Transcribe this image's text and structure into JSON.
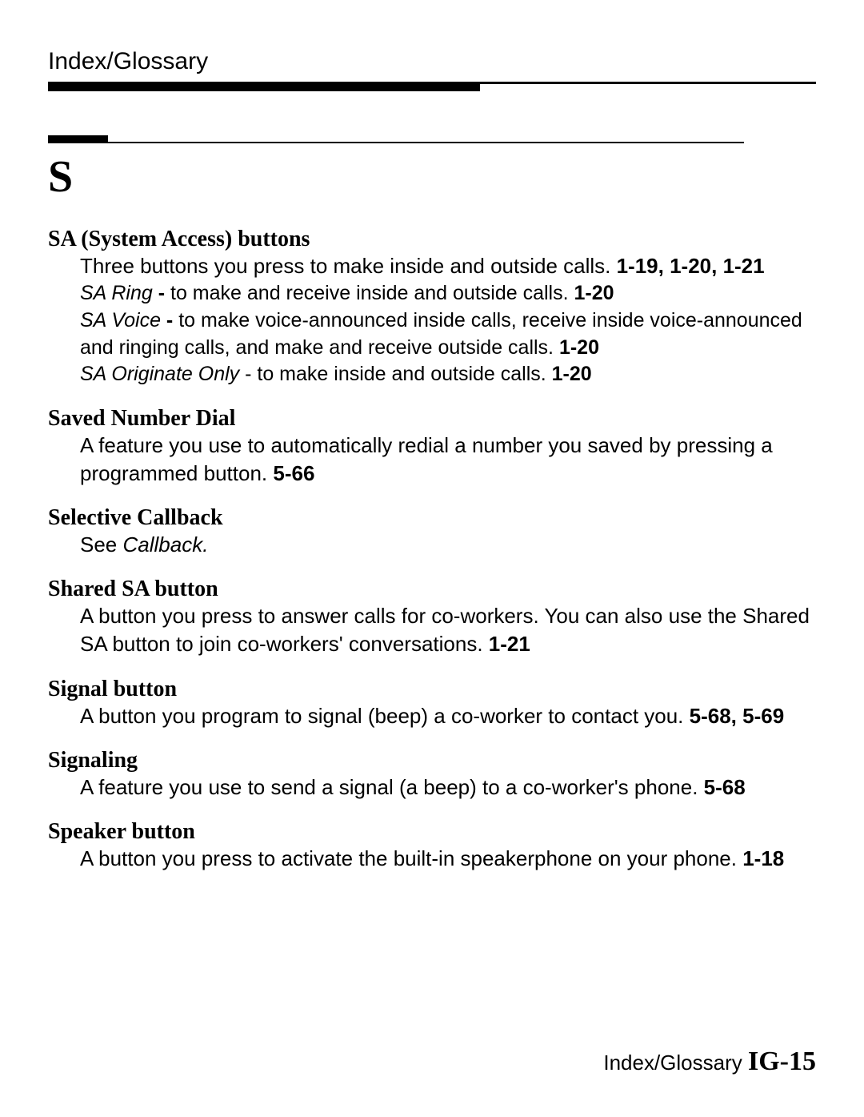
{
  "header": {
    "title": "Index/Glossary"
  },
  "section": {
    "letter": "S"
  },
  "entries": {
    "sa_buttons": {
      "term": "SA (System Access) buttons",
      "def_pre": "Three buttons you press to make inside and outside calls. ",
      "def_refs": "1-19, 1-20, 1-21",
      "sub_ring_label": "SA Ring",
      "sub_ring_sep": " - ",
      "sub_ring_text": "to make and receive inside and outside calls. ",
      "sub_ring_ref": "1-20",
      "sub_voice_label": "SA Voice",
      "sub_voice_sep": " - ",
      "sub_voice_text": "to make voice-announced inside calls, receive inside voice-announced and ringing calls, and make and receive outside calls. ",
      "sub_voice_ref": "1-20",
      "sub_orig_label": "SA Originate Only",
      "sub_orig_sep": " - ",
      "sub_orig_text": "to make inside and outside calls. ",
      "sub_orig_ref": "1-20"
    },
    "saved_number": {
      "term": "Saved Number Dial",
      "def_text": "A feature you use to automatically redial a number you saved by pressing a programmed button. ",
      "def_ref": "5-66"
    },
    "selective_callback": {
      "term": "Selective Callback",
      "def_pre": "See ",
      "def_ref_italic": "Callback."
    },
    "shared_sa": {
      "term": "Shared SA button",
      "def_text": "A button you press to answer calls for co-workers. You can also use the Shared SA button to join co-workers' conversations. ",
      "def_ref": "1-21"
    },
    "signal_button": {
      "term": "Signal button",
      "def_text": "A button you program to signal (beep) a co-worker to contact you. ",
      "def_ref": "5-68, 5-69"
    },
    "signaling": {
      "term": "Signaling",
      "def_text": "A feature you use to send a signal (a beep) to a co-worker's phone. ",
      "def_ref": "5-68"
    },
    "speaker_button": {
      "term": "Speaker button",
      "def_text": "A button you press to activate the built-in speakerphone on your phone. ",
      "def_ref": "1-18"
    }
  },
  "footer": {
    "label": "Index/Glossary ",
    "page": "IG-15"
  },
  "colors": {
    "text": "#000000",
    "bg": "#ffffff"
  }
}
